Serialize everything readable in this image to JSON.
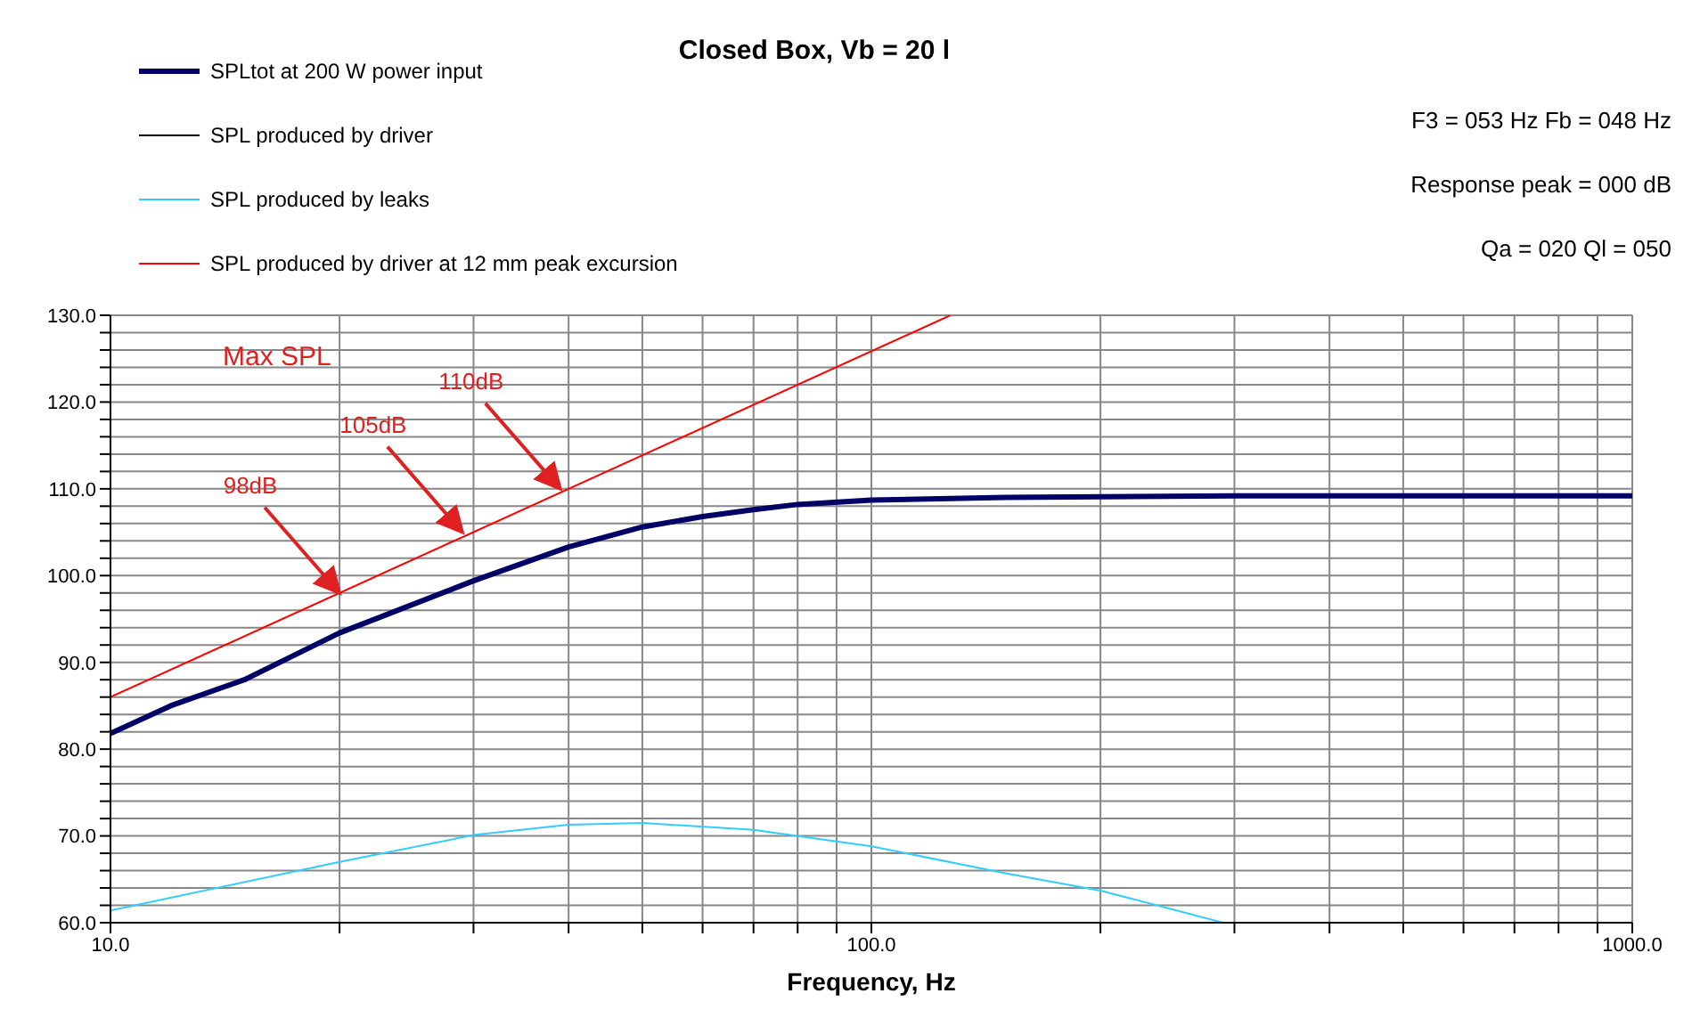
{
  "chart_data": {
    "type": "line",
    "title": "Closed Box, Vb = 20 l",
    "xlabel": "Frequency, Hz",
    "log": "x",
    "grid": true,
    "legend": "top left",
    "xlim": [
      10,
      1000
    ],
    "xticks": [
      {
        "value": 10,
        "label": "10.0"
      },
      {
        "value": 20,
        "label": null
      },
      {
        "value": 30,
        "label": null
      },
      {
        "value": 40,
        "label": null
      },
      {
        "value": 50,
        "label": null
      },
      {
        "value": 60,
        "label": null
      },
      {
        "value": 70,
        "label": null
      },
      {
        "value": 80,
        "label": null
      },
      {
        "value": 90,
        "label": null
      },
      {
        "value": 100,
        "label": "100.0"
      },
      {
        "value": 200,
        "label": null
      },
      {
        "value": 300,
        "label": null
      },
      {
        "value": 400,
        "label": null
      },
      {
        "value": 500,
        "label": null
      },
      {
        "value": 600,
        "label": null
      },
      {
        "value": 700,
        "label": null
      },
      {
        "value": 800,
        "label": null
      },
      {
        "value": 900,
        "label": null
      },
      {
        "value": 1000,
        "label": "1000.0"
      }
    ],
    "ylim": [
      60,
      130
    ],
    "yticks": [
      {
        "value": 60,
        "label": "60.0"
      },
      {
        "value": 62,
        "label": null
      },
      {
        "value": 64,
        "label": null
      },
      {
        "value": 66,
        "label": null
      },
      {
        "value": 68,
        "label": null
      },
      {
        "value": 70,
        "label": "70.0"
      },
      {
        "value": 72,
        "label": null
      },
      {
        "value": 74,
        "label": null
      },
      {
        "value": 76,
        "label": null
      },
      {
        "value": 78,
        "label": null
      },
      {
        "value": 80,
        "label": "80.0"
      },
      {
        "value": 82,
        "label": null
      },
      {
        "value": 84,
        "label": null
      },
      {
        "value": 86,
        "label": null
      },
      {
        "value": 88,
        "label": null
      },
      {
        "value": 90,
        "label": "90.0"
      },
      {
        "value": 92,
        "label": null
      },
      {
        "value": 94,
        "label": null
      },
      {
        "value": 96,
        "label": null
      },
      {
        "value": 98,
        "label": null
      },
      {
        "value": 100,
        "label": "100.0"
      },
      {
        "value": 102,
        "label": null
      },
      {
        "value": 104,
        "label": null
      },
      {
        "value": 106,
        "label": null
      },
      {
        "value": 108,
        "label": null
      },
      {
        "value": 110,
        "label": "110.0"
      },
      {
        "value": 112,
        "label": null
      },
      {
        "value": 114,
        "label": null
      },
      {
        "value": 116,
        "label": null
      },
      {
        "value": 118,
        "label": null
      },
      {
        "value": 120,
        "label": "120.0"
      },
      {
        "value": 122,
        "label": null
      },
      {
        "value": 124,
        "label": null
      },
      {
        "value": 126,
        "label": null
      },
      {
        "value": 128,
        "label": null
      },
      {
        "value": 130,
        "label": "130.0"
      }
    ],
    "series": [
      {
        "name": "SPLtot at 200 W power input",
        "color": "#000066",
        "x": [
          10,
          12,
          15,
          20,
          30,
          40,
          50,
          60,
          70,
          80,
          100,
          150,
          200,
          300,
          500,
          1000
        ],
        "values": [
          81.8,
          85,
          88,
          93.4,
          99.4,
          103.3,
          105.6,
          106.8,
          107.6,
          108.2,
          108.7,
          109,
          109.1,
          109.2,
          109.2,
          109.2
        ]
      },
      {
        "name": "SPL produced by driver",
        "color": "#000000"
      },
      {
        "name": "SPL produced by leaks",
        "color": "#33ccff",
        "x": [
          10,
          20,
          30,
          40,
          50,
          70,
          100,
          150,
          200,
          290
        ],
        "values": [
          61.4,
          67,
          70.1,
          71.3,
          71.5,
          70.7,
          68.8,
          65.7,
          63.7,
          60
        ]
      },
      {
        "name": "SPL produced by driver at 12 mm peak excursion",
        "color": "#ff0000",
        "x": [
          10,
          127
        ],
        "values": [
          86,
          130
        ]
      }
    ],
    "annotations": [
      "F3 = 053 Hz  Fb = 048 Hz",
      "Response peak = 000 dB",
      "Qa = 020  Ql = 050",
      "Max SPL",
      {
        "text": "98dB",
        "x": 20,
        "y": 98
      },
      {
        "text": "105dB",
        "x": 29,
        "y": 105
      },
      {
        "text": "110dB",
        "x": 39,
        "y": 110
      }
    ]
  }
}
